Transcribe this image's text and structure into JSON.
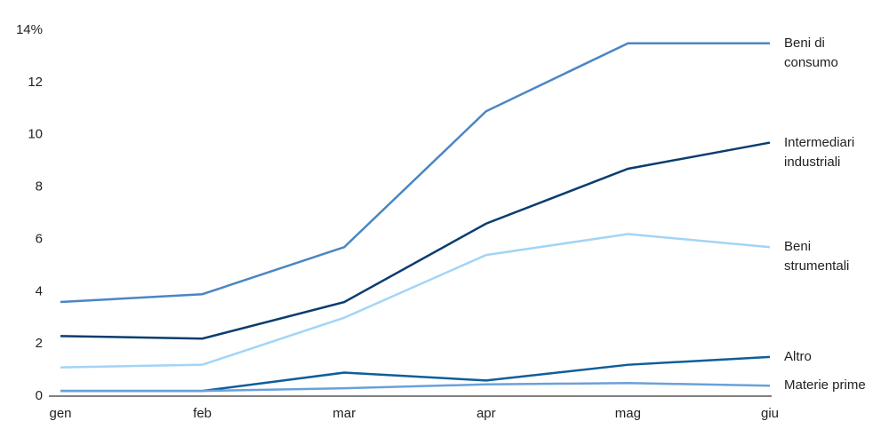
{
  "chart_data": {
    "type": "line",
    "categories": [
      "gen",
      "feb",
      "mar",
      "apr",
      "mag",
      "giu"
    ],
    "series": [
      {
        "name": "Beni di consumo",
        "color": "#4a86c5",
        "values": [
          3.6,
          3.9,
          5.7,
          10.9,
          13.5,
          13.5
        ]
      },
      {
        "name": "Intermediari industriali",
        "color": "#0a3d6e",
        "values": [
          2.3,
          2.2,
          3.6,
          6.6,
          8.7,
          9.7
        ]
      },
      {
        "name": "Beni strumentali",
        "color": "#a3d4f7",
        "values": [
          1.1,
          1.2,
          3.0,
          5.4,
          6.2,
          5.7
        ]
      },
      {
        "name": "Altro",
        "color": "#0e5e9a",
        "values": [
          0.2,
          0.2,
          0.9,
          0.6,
          1.2,
          1.5
        ]
      },
      {
        "name": "Materie prime",
        "color": "#6aa0da",
        "values": [
          0.2,
          0.2,
          0.3,
          0.45,
          0.5,
          0.4
        ]
      }
    ],
    "ylim": [
      0,
      14
    ],
    "yticks": [
      0,
      2,
      4,
      6,
      8,
      10,
      12,
      {
        "value": 14,
        "label": "14%"
      }
    ],
    "grid": false
  }
}
